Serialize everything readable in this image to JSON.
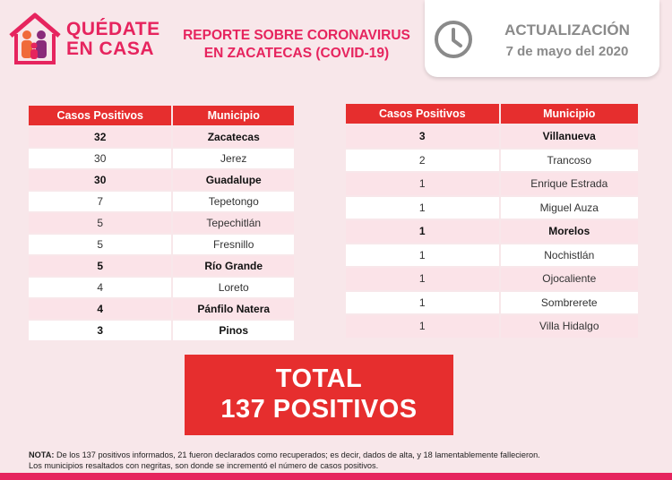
{
  "header": {
    "logo_line1": "QUÉDATE",
    "logo_line2": "EN CASA",
    "report_line1": "REPORTE SOBRE CORONAVIRUS",
    "report_line2": "EN ZACATECAS  (COVID-19)",
    "update_label": "ACTUALIZACIÓN",
    "update_date": "7 de mayo del 2020",
    "icons": [
      "house-family-icon",
      "clock-icon"
    ],
    "accent_color": "#e6245e",
    "table_header_color": "#e62e2e"
  },
  "tables": {
    "col_cases": "Casos Positivos",
    "col_municipality": "Municipio",
    "left": [
      {
        "cases": "32",
        "municipality": "Zacatecas"
      },
      {
        "cases": "30",
        "municipality": "Jerez"
      },
      {
        "cases": "30",
        "municipality": "Guadalupe"
      },
      {
        "cases": "7",
        "municipality": "Tepetongo"
      },
      {
        "cases": "5",
        "municipality": "Tepechitlán"
      },
      {
        "cases": "5",
        "municipality": "Fresnillo"
      },
      {
        "cases": "5",
        "municipality": "Río Grande"
      },
      {
        "cases": "4",
        "municipality": "Loreto"
      },
      {
        "cases": "4",
        "municipality": "Pánfilo Natera"
      },
      {
        "cases": "3",
        "municipality": "Pinos"
      }
    ],
    "right": [
      {
        "cases": "3",
        "municipality": "Villanueva"
      },
      {
        "cases": "2",
        "municipality": "Trancoso"
      },
      {
        "cases": "1",
        "municipality": "Enrique Estrada"
      },
      {
        "cases": "1",
        "municipality": "Miguel Auza"
      },
      {
        "cases": "1",
        "municipality": "Morelos"
      },
      {
        "cases": "1",
        "municipality": "Nochistlán"
      },
      {
        "cases": "1",
        "municipality": "Ojocaliente"
      },
      {
        "cases": "1",
        "municipality": "Sombrerete"
      },
      {
        "cases": "1",
        "municipality": "Villa Hidalgo"
      }
    ]
  },
  "total": {
    "line1": "TOTAL",
    "line2": "137 POSITIVOS"
  },
  "note": {
    "label": "NOTA:",
    "text1": "De los 137 positivos informados, 21 fueron declarados como recuperados; es decir, dados de alta, y 18 lamentablemente fallecieron.",
    "text2": "Los municipios resaltados con negritas, son donde se incrementó el número de casos positivos."
  }
}
